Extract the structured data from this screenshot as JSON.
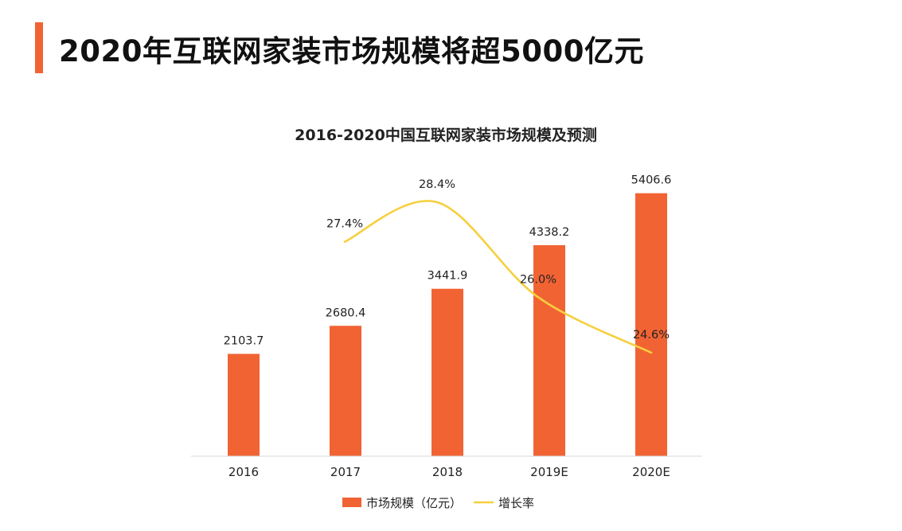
{
  "slide": {
    "title": "2020年互联网家装市场规模将超5000亿元",
    "accent_color": "#f26334"
  },
  "chart_data": {
    "type": "bar",
    "title": "2016-2020中国互联网家装市场规模及预测",
    "categories": [
      "2016",
      "2017",
      "2018",
      "2019E",
      "2020E"
    ],
    "series": [
      {
        "name": "市场规模（亿元）",
        "type": "bar",
        "color": "#f26334",
        "values": [
          2103.7,
          2680.4,
          3441.9,
          4338.2,
          5406.6
        ],
        "labels": [
          "2103.7",
          "2680.4",
          "3441.9",
          "4338.2",
          "5406.6"
        ]
      },
      {
        "name": "增长率",
        "type": "line",
        "color": "#f7cf3e",
        "values": [
          null,
          27.4,
          28.4,
          26.0,
          24.6
        ],
        "labels": [
          null,
          "27.4%",
          "28.4%",
          "26.0%",
          "24.6%"
        ]
      }
    ],
    "ylim": [
      0,
      5500
    ],
    "grid": false,
    "legend_position": "bottom"
  }
}
